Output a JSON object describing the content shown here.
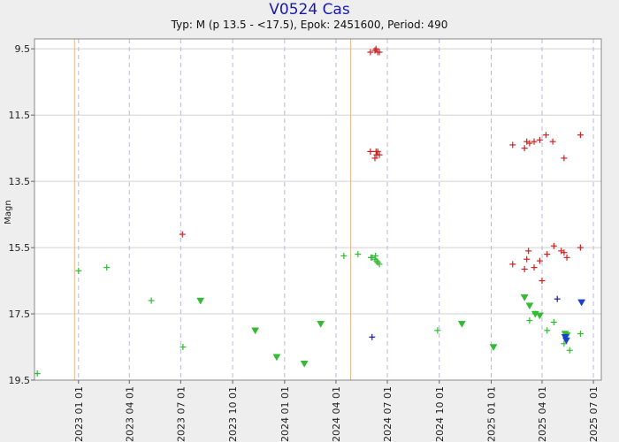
{
  "chart_data": {
    "type": "scatter",
    "title": "V0524 Cas",
    "subtitle": "Typ: M (p 13.5 - <17.5), Epok: 2451600, Period: 490",
    "ylabel": "Magn",
    "xlabel": "",
    "y_inverted": true,
    "ylim": [
      9.2,
      19.5
    ],
    "xlim": [
      "2022-10-15",
      "2025-07-15"
    ],
    "yticks": [
      9.5,
      11.5,
      13.5,
      15.5,
      17.5,
      19.5
    ],
    "yticks_labels": [
      "9.5",
      "11.5",
      "13.5",
      "15.5",
      "17.5",
      "19.5"
    ],
    "xticks": [
      "2023-01-01",
      "2023-04-01",
      "2023-07-01",
      "2023-10-01",
      "2024-01-01",
      "2024-04-01",
      "2024-07-01",
      "2024-10-01",
      "2025-01-01",
      "2025-04-01",
      "2025-07-01"
    ],
    "xticks_labels": [
      "2023 01 01",
      "2023 04 01",
      "2023 07 01",
      "2023 10 01",
      "2024 01 01",
      "2024 04 01",
      "2024 07 01",
      "2024 10 01",
      "2025 01 01",
      "2025 04 01",
      "2025 07 01"
    ],
    "minima_dates": [
      "2022-12-25",
      "2024-04-27"
    ],
    "grid": true,
    "colors": {
      "red_plus": "#cc2222",
      "green_plus": "#33bb33",
      "green_tri": "#33bb33",
      "blue_plus": "#1a1a99",
      "blue_tri": "#1a3fcc",
      "title": "#1a1aa6",
      "minima_line": "#e8b88a",
      "grid_h": "#d0d0d0",
      "grid_v": "#b8b8e0"
    },
    "series": [
      {
        "marker": "plus",
        "color_key": "red_plus",
        "points": [
          [
            "2023-07-04",
            15.1
          ],
          [
            "2024-06-01",
            9.6
          ],
          [
            "2024-06-09",
            9.55
          ],
          [
            "2024-06-11",
            9.5
          ],
          [
            "2024-06-14",
            9.6
          ],
          [
            "2024-06-17",
            9.6
          ],
          [
            "2024-06-01",
            12.6
          ],
          [
            "2024-06-09",
            12.8
          ],
          [
            "2024-06-11",
            12.6
          ],
          [
            "2024-06-12",
            12.7
          ],
          [
            "2024-06-14",
            12.6
          ],
          [
            "2024-06-17",
            12.7
          ],
          [
            "2025-02-08",
            12.4
          ],
          [
            "2025-03-01",
            12.5
          ],
          [
            "2025-03-05",
            12.3
          ],
          [
            "2025-03-10",
            12.35
          ],
          [
            "2025-03-18",
            12.3
          ],
          [
            "2025-03-28",
            12.25
          ],
          [
            "2025-04-08",
            12.1
          ],
          [
            "2025-04-20",
            12.3
          ],
          [
            "2025-05-10",
            12.8
          ],
          [
            "2025-06-08",
            12.1
          ],
          [
            "2025-02-08",
            16.0
          ],
          [
            "2025-03-01",
            16.15
          ],
          [
            "2025-03-05",
            15.85
          ],
          [
            "2025-03-08",
            15.6
          ],
          [
            "2025-03-18",
            16.1
          ],
          [
            "2025-03-28",
            15.9
          ],
          [
            "2025-04-01",
            16.5
          ],
          [
            "2025-04-10",
            15.7
          ],
          [
            "2025-04-22",
            15.45
          ],
          [
            "2025-05-05",
            15.6
          ],
          [
            "2025-05-10",
            15.65
          ],
          [
            "2025-05-15",
            15.8
          ],
          [
            "2025-06-08",
            15.5
          ]
        ]
      },
      {
        "marker": "plus",
        "color_key": "green_plus",
        "points": [
          [
            "2022-10-20",
            19.3
          ],
          [
            "2023-01-01",
            16.2
          ],
          [
            "2023-02-20",
            16.1
          ],
          [
            "2023-05-10",
            17.1
          ],
          [
            "2023-07-05",
            18.5
          ],
          [
            "2024-04-15",
            15.75
          ],
          [
            "2024-05-10",
            15.7
          ],
          [
            "2024-06-02",
            15.8
          ],
          [
            "2024-06-04",
            15.8
          ],
          [
            "2024-06-09",
            15.85
          ],
          [
            "2024-06-10",
            15.75
          ],
          [
            "2024-06-12",
            15.9
          ],
          [
            "2024-06-14",
            15.95
          ],
          [
            "2024-06-17",
            16.0
          ],
          [
            "2024-09-28",
            18.0
          ],
          [
            "2025-03-10",
            17.7
          ],
          [
            "2025-03-20",
            17.5
          ],
          [
            "2025-04-10",
            18.0
          ],
          [
            "2025-04-22",
            17.75
          ],
          [
            "2025-05-10",
            18.4
          ],
          [
            "2025-05-20",
            18.6
          ],
          [
            "2025-06-08",
            18.1
          ]
        ]
      },
      {
        "marker": "triangle",
        "color_key": "green_tri",
        "points": [
          [
            "2023-08-05",
            17.1
          ],
          [
            "2023-11-10",
            18.0
          ],
          [
            "2023-12-18",
            18.8
          ],
          [
            "2024-02-05",
            19.0
          ],
          [
            "2024-03-05",
            17.8
          ],
          [
            "2024-11-10",
            17.8
          ],
          [
            "2025-01-05",
            18.5
          ],
          [
            "2025-03-01",
            17.0
          ],
          [
            "2025-03-10",
            17.25
          ],
          [
            "2025-03-20",
            17.5
          ],
          [
            "2025-03-28",
            17.55
          ],
          [
            "2025-05-12",
            18.1
          ],
          [
            "2025-05-15",
            18.15
          ]
        ]
      },
      {
        "marker": "plus",
        "color_key": "blue_plus",
        "points": [
          [
            "2024-06-04",
            18.2
          ],
          [
            "2025-04-28",
            17.05
          ]
        ]
      },
      {
        "marker": "triangle",
        "color_key": "blue_tri",
        "points": [
          [
            "2025-05-12",
            18.2
          ],
          [
            "2025-05-14",
            18.3
          ],
          [
            "2025-06-10",
            17.15
          ]
        ]
      }
    ]
  }
}
